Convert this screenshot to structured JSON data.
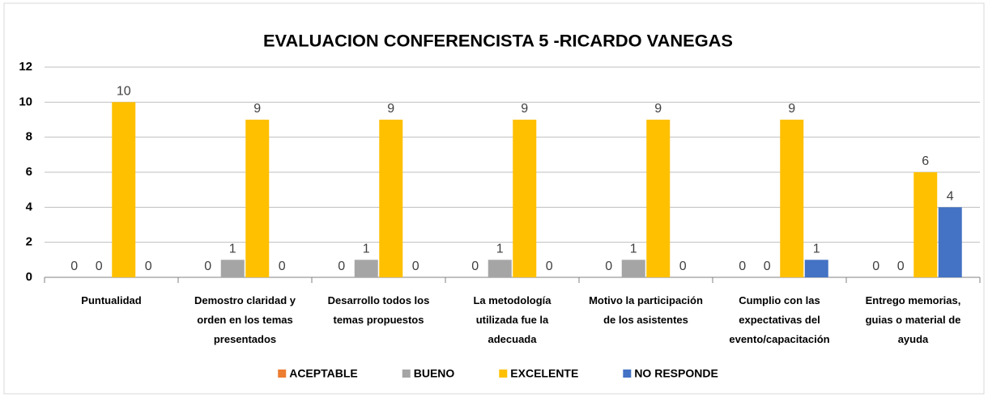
{
  "chart_data": {
    "type": "bar",
    "title": "EVALUACION CONFERENCISTA 5 -RICARDO VANEGAS",
    "categories": [
      "Puntualidad",
      "Demostro claridad y orden en los temas presentados",
      "Desarrollo todos los temas propuestos",
      "La metodología utilizada fue la adecuada",
      "Motivo la participación de los asistentes",
      "Cumplio con las expectativas del evento/capacitación",
      "Entrego memorias, guias o material de ayuda"
    ],
    "series": [
      {
        "name": "ACEPTABLE",
        "color": "#ed7d31",
        "values": [
          0,
          0,
          0,
          0,
          0,
          0,
          0
        ]
      },
      {
        "name": "BUENO",
        "color": "#a5a5a5",
        "values": [
          0,
          1,
          1,
          1,
          1,
          0,
          0
        ]
      },
      {
        "name": "EXCELENTE",
        "color": "#ffc000",
        "values": [
          10,
          9,
          9,
          9,
          9,
          9,
          6
        ]
      },
      {
        "name": "NO RESPONDE",
        "color": "#4472c4",
        "values": [
          0,
          0,
          0,
          0,
          0,
          1,
          4
        ]
      }
    ],
    "ylim": [
      0,
      12
    ],
    "yticks": [
      0,
      2,
      4,
      6,
      8,
      10,
      12
    ],
    "grid": true,
    "legend": "bottom"
  }
}
